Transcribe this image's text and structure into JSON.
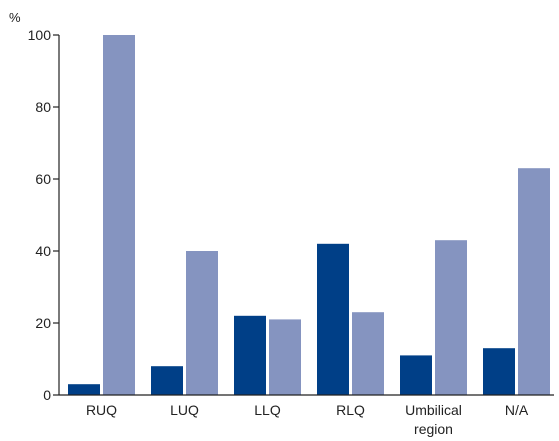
{
  "chart_data": {
    "type": "bar",
    "ylabel": "%",
    "ylim": [
      0,
      100
    ],
    "yticks": [
      0,
      20,
      40,
      60,
      80,
      100
    ],
    "grid": false,
    "legend": "none",
    "categories": [
      "RUQ",
      "LUQ",
      "LLQ",
      "RLQ",
      "Umbilical region",
      "N/A"
    ],
    "category_lines": [
      [
        "RUQ"
      ],
      [
        "LUQ"
      ],
      [
        "LLQ"
      ],
      [
        "RLQ"
      ],
      [
        "Umbilical",
        "region"
      ],
      [
        "N/A"
      ]
    ],
    "series": [
      {
        "color": "#003f87",
        "values": [
          3,
          8,
          22,
          42,
          11,
          13
        ]
      },
      {
        "color": "#8594c0",
        "values": [
          100,
          40,
          21,
          23,
          43,
          63
        ]
      }
    ]
  }
}
